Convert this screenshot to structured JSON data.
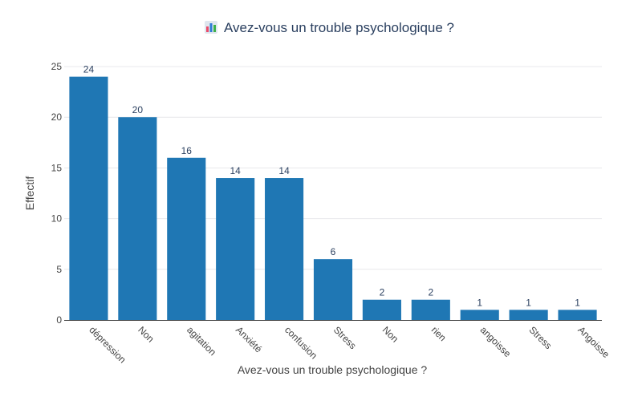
{
  "chart_data": {
    "type": "bar",
    "title": "Avez-vous un trouble psychologique ?",
    "title_icon": "bar-chart-emoji-icon",
    "xlabel": "Avez-vous un trouble psychologique ?",
    "ylabel": "Effectif",
    "categories": [
      "dépression",
      "Non",
      "agitation",
      "Anxiété",
      "confusion",
      "Stress",
      "Non ",
      "rien",
      "angoisse",
      "Stress ",
      "Angoisse"
    ],
    "values": [
      24,
      20,
      16,
      14,
      14,
      6,
      2,
      2,
      1,
      1,
      1
    ],
    "ylim": [
      0,
      25
    ],
    "yticks": [
      0,
      5,
      10,
      15,
      20,
      25
    ],
    "grid": true,
    "bar_color": "#1f77b4",
    "data_labels": true,
    "legend": "none"
  }
}
